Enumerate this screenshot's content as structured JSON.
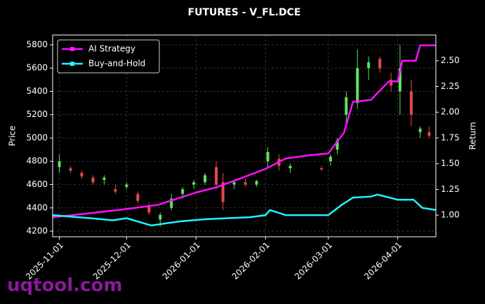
{
  "chart_data": {
    "type": "candlestick",
    "title": "FUTURES - V_FL.DCE",
    "ylabel": "Price",
    "y2label": "Return",
    "watermark": "uqtool.com",
    "legend": "upper left",
    "grid": true,
    "xlim": [
      "2025-10-29",
      "2026-04-18"
    ],
    "xticks": [
      "2025-11-01",
      "2025-12-01",
      "2026-01-01",
      "2026-02-01",
      "2026-03-01",
      "2026-04-01"
    ],
    "ylim": [
      4152,
      5884
    ],
    "yticks": [
      4200,
      4400,
      4600,
      4800,
      5000,
      5200,
      5400,
      5600,
      5800
    ],
    "y2lim": [
      0.79,
      2.75
    ],
    "y2ticks": [
      {
        "value": 1,
        "label": "1.00"
      },
      {
        "value": 1.25,
        "label": "1.25"
      },
      {
        "value": 1.5,
        "label": "1.50"
      },
      {
        "value": 1.75,
        "label": "1.75"
      },
      {
        "value": 2,
        "label": "2.00"
      },
      {
        "value": 2.25,
        "label": "2.25"
      },
      {
        "value": 2.5,
        "label": "2.50"
      }
    ],
    "up_color": "#5ee35e",
    "down_color": "#e64a4a",
    "candles": {
      "x": [
        "2025-11-01",
        "2025-11-06",
        "2025-11-11",
        "2025-11-16",
        "2025-11-21",
        "2025-11-26",
        "2025-12-01",
        "2025-12-06",
        "2025-12-11",
        "2025-12-16",
        "2025-12-21",
        "2025-12-26",
        "2025-12-31",
        "2026-01-05",
        "2026-01-10",
        "2026-01-13",
        "2026-01-18",
        "2026-01-23",
        "2026-01-28",
        "2026-02-02",
        "2026-02-07",
        "2026-02-12",
        "2026-02-26",
        "2026-03-02",
        "2026-03-05",
        "2026-03-09",
        "2026-03-14",
        "2026-03-19",
        "2026-03-24",
        "2026-03-29",
        "2026-04-02",
        "2026-04-07",
        "2026-04-11",
        "2026-04-15"
      ],
      "open": [
        4750,
        4740,
        4700,
        4660,
        4640,
        4560,
        4580,
        4520,
        4420,
        4300,
        4400,
        4520,
        4600,
        4620,
        4750,
        4620,
        4600,
        4620,
        4600,
        4800,
        4820,
        4740,
        4740,
        4800,
        4900,
        5200,
        5300,
        5600,
        5680,
        5500,
        5400,
        5400,
        5050,
        5050
      ],
      "high": [
        4860,
        4760,
        4720,
        4680,
        4680,
        4600,
        4620,
        4540,
        4450,
        4360,
        4520,
        4580,
        4640,
        4700,
        4800,
        4700,
        4640,
        4650,
        4640,
        4920,
        4860,
        4780,
        4760,
        4860,
        5000,
        5400,
        5760,
        5700,
        5700,
        5560,
        5800,
        5500,
        5100,
        5100
      ],
      "low": [
        4700,
        4700,
        4650,
        4600,
        4600,
        4520,
        4560,
        4440,
        4340,
        4240,
        4380,
        4480,
        4560,
        4600,
        4560,
        4380,
        4560,
        4580,
        4580,
        4740,
        4720,
        4700,
        4720,
        4760,
        4860,
        5100,
        5250,
        5500,
        5560,
        5400,
        5200,
        5100,
        5000,
        5000
      ],
      "close": [
        4800,
        4720,
        4670,
        4620,
        4660,
        4540,
        4600,
        4460,
        4360,
        4340,
        4480,
        4560,
        4620,
        4680,
        4600,
        4450,
        4620,
        4600,
        4630,
        4880,
        4760,
        4760,
        4730,
        4840,
        4980,
        5350,
        5600,
        5650,
        5600,
        5450,
        5600,
        5200,
        5080,
        5020
      ]
    },
    "series": [
      {
        "name": "AI Strategy",
        "color": "#ff10ff",
        "axis": "y2",
        "x": [
          "2025-10-29",
          "2025-11-15",
          "2025-12-01",
          "2025-12-15",
          "2026-01-01",
          "2026-01-10",
          "2026-01-20",
          "2026-02-01",
          "2026-02-10",
          "2026-02-20",
          "2026-03-01",
          "2026-03-08",
          "2026-03-12",
          "2026-03-20",
          "2026-03-28",
          "2026-04-01",
          "2026-04-03",
          "2026-04-09",
          "2026-04-11",
          "2026-04-18"
        ],
        "values": [
          0.98,
          1.02,
          1.06,
          1.1,
          1.22,
          1.27,
          1.35,
          1.45,
          1.55,
          1.58,
          1.6,
          1.8,
          2.1,
          2.12,
          2.3,
          2.3,
          2.5,
          2.5,
          2.65,
          2.65
        ]
      },
      {
        "name": "Buy-and-Hold",
        "color": "#1ff5ff",
        "axis": "y2",
        "x": [
          "2025-10-29",
          "2025-11-15",
          "2025-11-25",
          "2025-12-01",
          "2025-12-12",
          "2025-12-25",
          "2026-01-05",
          "2026-01-15",
          "2026-01-25",
          "2026-02-01",
          "2026-02-03",
          "2026-02-10",
          "2026-03-01",
          "2026-03-07",
          "2026-03-12",
          "2026-03-20",
          "2026-03-23",
          "2026-04-01",
          "2026-04-08",
          "2026-04-12",
          "2026-04-18"
        ],
        "values": [
          1,
          0.97,
          0.95,
          0.97,
          0.9,
          0.94,
          0.96,
          0.97,
          0.98,
          1,
          1.05,
          1,
          1,
          1.1,
          1.17,
          1.18,
          1.2,
          1.15,
          1.15,
          1.07,
          1.05
        ]
      }
    ]
  }
}
